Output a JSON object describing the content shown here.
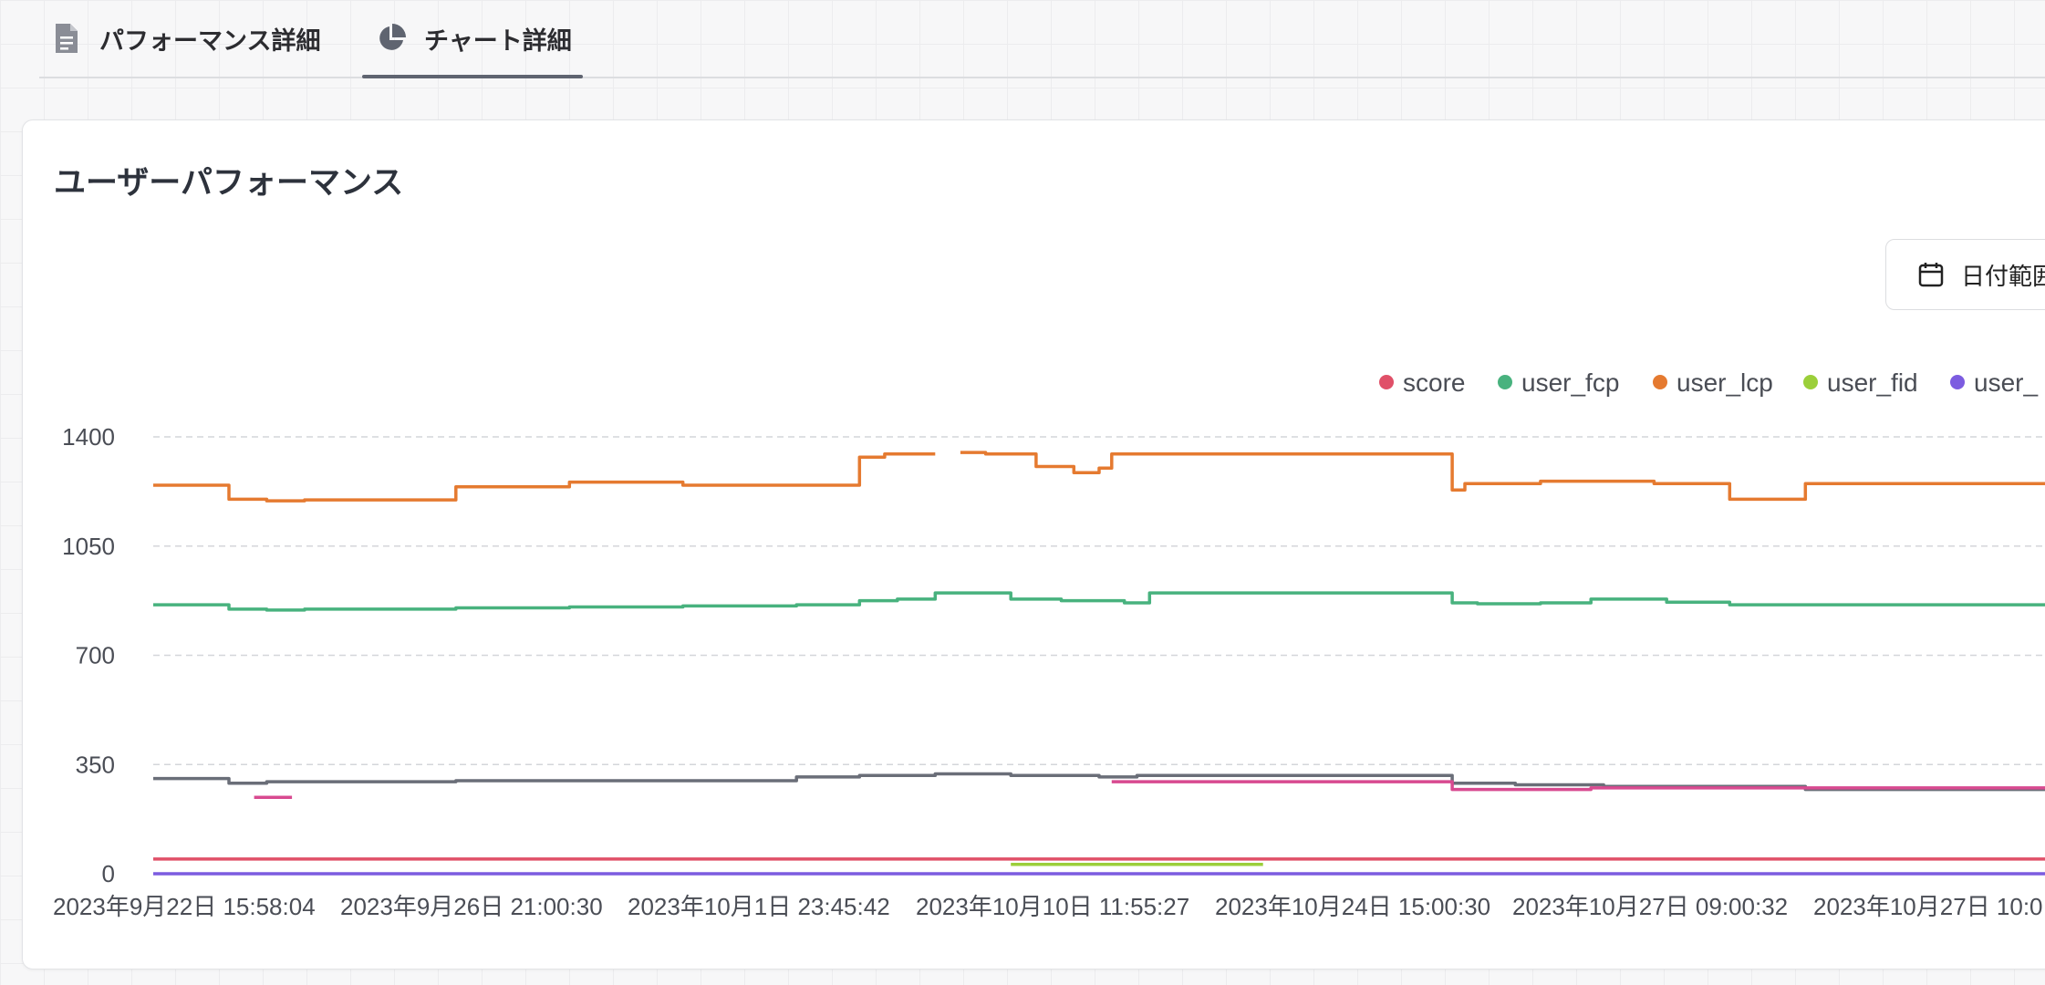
{
  "tabs": [
    {
      "label": "パフォーマンス詳細",
      "icon": "document-icon",
      "active": false
    },
    {
      "label": "チャート詳細",
      "icon": "pie-chart-icon",
      "active": true
    }
  ],
  "card": {
    "title": "ユーザーパフォーマンス",
    "date_button_label": "日付範囲"
  },
  "chart_data": {
    "type": "line",
    "title": "",
    "xlabel": "",
    "ylabel": "",
    "ylim": [
      0,
      1400
    ],
    "yticks": [
      0,
      350,
      700,
      1050,
      1400
    ],
    "grid": "horizontal dashed",
    "legend_position": "top-right",
    "x_tick_labels": [
      "2023年9月22日 15:58:04",
      "2023年9月26日 21:00:30",
      "2023年10月1日 23:45:42",
      "2023年10月10日 11:55:27",
      "2023年10月24日 15:00:30",
      "2023年10月27日 09:00:32",
      "2023年10月27日 10:0"
    ],
    "x_count": 300,
    "series": [
      {
        "name": "score",
        "color": "#e05068",
        "segments": [
          [
            0,
            300,
            47
          ]
        ]
      },
      {
        "name": "user_fcp",
        "color": "#48b27e",
        "segments": [
          [
            0,
            12,
            862
          ],
          [
            12,
            18,
            848
          ],
          [
            18,
            24,
            845
          ],
          [
            24,
            48,
            848
          ],
          [
            48,
            66,
            852
          ],
          [
            66,
            84,
            855
          ],
          [
            84,
            102,
            858
          ],
          [
            102,
            112,
            862
          ],
          [
            112,
            118,
            875
          ],
          [
            118,
            124,
            880
          ],
          [
            124,
            136,
            900
          ],
          [
            136,
            144,
            880
          ],
          [
            144,
            154,
            875
          ],
          [
            154,
            158,
            868
          ],
          [
            158,
            164,
            900
          ],
          [
            164,
            206,
            900
          ],
          [
            206,
            210,
            868
          ],
          [
            210,
            220,
            865
          ],
          [
            220,
            228,
            868
          ],
          [
            228,
            240,
            880
          ],
          [
            240,
            250,
            870
          ],
          [
            250,
            300,
            862
          ]
        ]
      },
      {
        "name": "user_lcp",
        "color": "#e57a30",
        "segments": [
          [
            0,
            12,
            1245
          ],
          [
            12,
            18,
            1200
          ],
          [
            18,
            24,
            1195
          ],
          [
            24,
            48,
            1198
          ],
          [
            48,
            66,
            1240
          ],
          [
            66,
            84,
            1255
          ],
          [
            84,
            102,
            1245
          ],
          [
            102,
            112,
            1245
          ],
          [
            112,
            116,
            1335
          ],
          [
            116,
            120,
            1345
          ],
          [
            120,
            124,
            1345
          ],
          [
            128,
            132,
            1350
          ],
          [
            132,
            140,
            1345
          ],
          [
            140,
            146,
            1305
          ],
          [
            146,
            150,
            1285
          ],
          [
            150,
            152,
            1300
          ],
          [
            152,
            156,
            1345
          ],
          [
            156,
            206,
            1345
          ],
          [
            206,
            208,
            1230
          ],
          [
            208,
            220,
            1250
          ],
          [
            220,
            238,
            1258
          ],
          [
            238,
            250,
            1250
          ],
          [
            250,
            262,
            1200
          ],
          [
            262,
            300,
            1250
          ]
        ]
      },
      {
        "name": "user_fid",
        "color": "#9bcf3a",
        "segments": [
          [
            136,
            168,
            30
          ],
          [
            168,
            176,
            30
          ]
        ]
      },
      {
        "name": "user_",
        "color": "#7c5ce0",
        "segments": [
          [
            0,
            300,
            0
          ]
        ]
      },
      {
        "name": "",
        "color": "#6a6e78",
        "segments": [
          [
            0,
            12,
            305
          ],
          [
            12,
            18,
            290
          ],
          [
            18,
            48,
            295
          ],
          [
            48,
            84,
            298
          ],
          [
            84,
            102,
            298
          ],
          [
            102,
            112,
            310
          ],
          [
            112,
            124,
            315
          ],
          [
            124,
            136,
            320
          ],
          [
            136,
            150,
            315
          ],
          [
            150,
            156,
            310
          ],
          [
            156,
            206,
            315
          ],
          [
            206,
            216,
            290
          ],
          [
            216,
            230,
            285
          ],
          [
            230,
            262,
            280
          ],
          [
            262,
            300,
            270
          ]
        ]
      },
      {
        "name": "",
        "color": "#d84a90",
        "segments": [
          [
            16,
            22,
            245
          ],
          [
            152,
            206,
            295
          ],
          [
            206,
            220,
            270
          ],
          [
            220,
            228,
            270
          ],
          [
            228,
            300,
            275
          ]
        ]
      }
    ]
  }
}
